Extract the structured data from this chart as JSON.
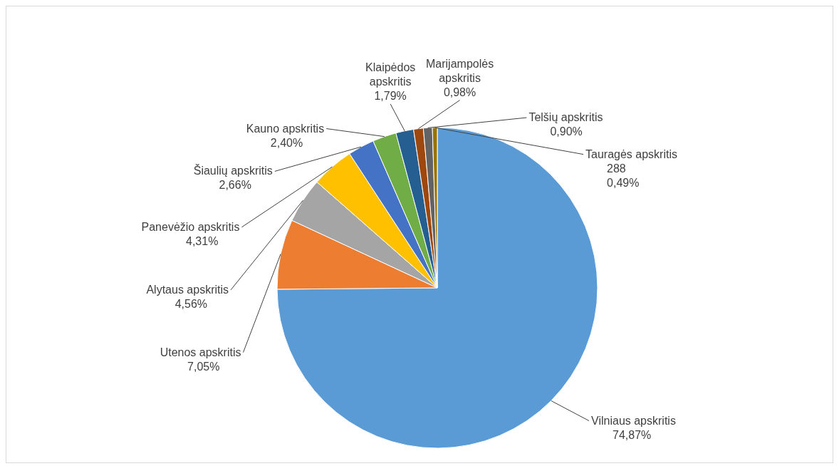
{
  "chart_data": {
    "type": "pie",
    "categories": [
      "Vilniaus apskritis",
      "Utenos apskritis",
      "Alytaus apskritis",
      "Panevėžio apskritis",
      "Šiaulių apskritis",
      "Kauno apskritis",
      "Klaipėdos apskritis",
      "Marijampolės apskritis",
      "Telšių apskritis",
      "Tauragės apskritis"
    ],
    "values": [
      74.87,
      7.05,
      4.56,
      4.31,
      2.66,
      2.4,
      1.79,
      0.98,
      0.9,
      0.49
    ],
    "colors": [
      "#5b9bd5",
      "#ed7d31",
      "#a5a5a5",
      "#ffc000",
      "#4472c4",
      "#70ad47",
      "#255e91",
      "#9e480e",
      "#636363",
      "#997300"
    ],
    "value_labels": [
      "74,87%",
      "7,05%",
      "4,56%",
      "4,31%",
      "2,66%",
      "2,40%",
      "1,79%",
      "0,98%",
      "0,90%",
      "288\n0,49%"
    ]
  }
}
